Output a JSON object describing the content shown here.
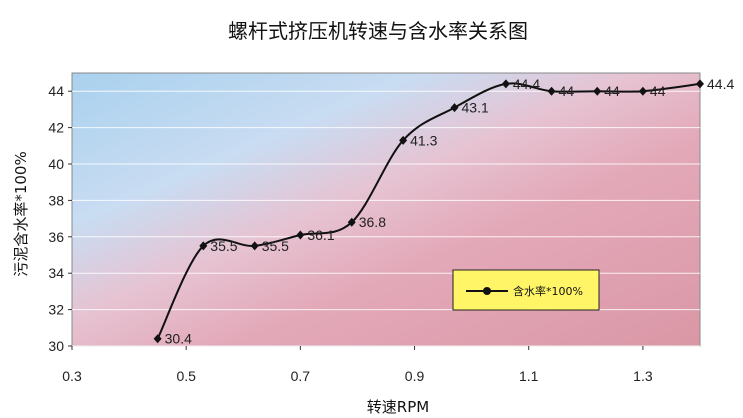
{
  "chart_data": {
    "type": "line",
    "title": "螺杆式挤压机转速与含水率关系图",
    "xlabel": "转速RPM",
    "ylabel": "污泥含水率*100%",
    "xlim": [
      0.3,
      1.4
    ],
    "ylim": [
      30,
      45
    ],
    "x_ticks": [
      "0.3",
      "0.5",
      "0.7",
      "0.9",
      "1.1",
      "1.3"
    ],
    "y_ticks": [
      "30",
      "32",
      "34",
      "36",
      "38",
      "40",
      "42",
      "44"
    ],
    "grid": true,
    "legend_position": "inside-bottom-right",
    "series": [
      {
        "name": "含水率*100%",
        "color": "#111111",
        "x": [
          0.45,
          0.53,
          0.62,
          0.7,
          0.79,
          0.88,
          0.97,
          1.06,
          1.14,
          1.22,
          1.3,
          1.4
        ],
        "values": [
          30.4,
          35.5,
          35.5,
          36.1,
          36.8,
          41.3,
          43.1,
          44.4,
          44,
          44,
          44,
          44.4
        ],
        "labels": [
          "30.4",
          "35.5",
          "35.5",
          "36.1",
          "36.8",
          "41.3",
          "43.1",
          "44.4",
          "44",
          "44",
          "44",
          "44.4"
        ]
      }
    ]
  }
}
